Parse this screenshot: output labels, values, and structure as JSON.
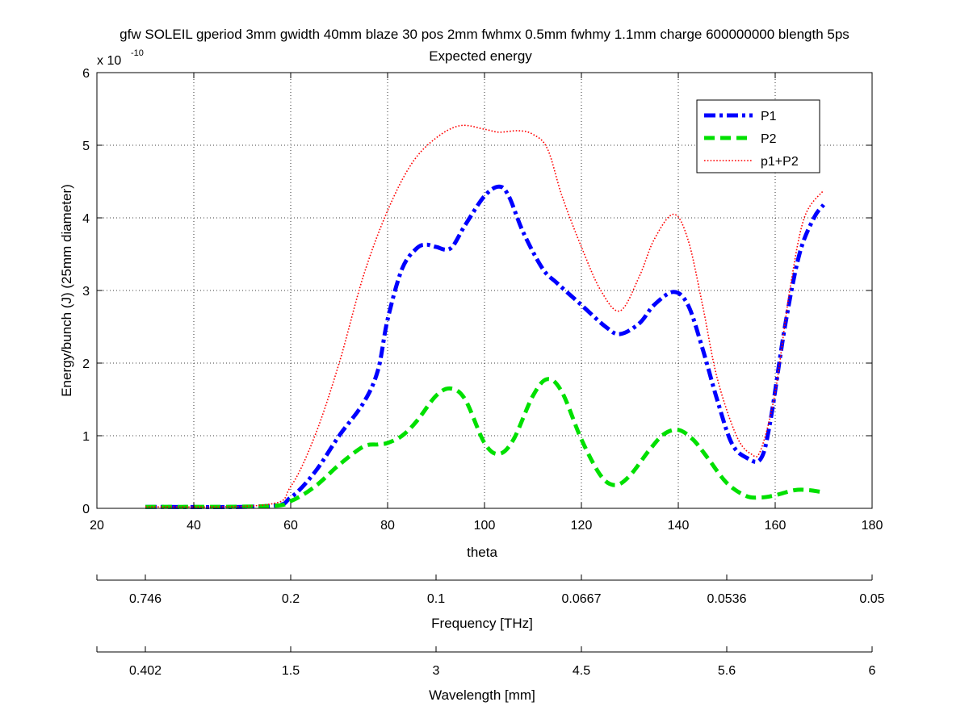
{
  "chart_data": {
    "type": "line",
    "title": "gfw SOLEIL gperiod 3mm gwidth 40mm blaze 30 pos 2mm fwhmx 0.5mm fwhmy 1.1mm charge 600000000 blength 5ps",
    "subtitle": "Expected energy",
    "xlabel": "theta",
    "ylabel": "Energy/bunch (J) (25mm diameter)",
    "y_exponent_base": "x 10",
    "y_exponent_power": "-10",
    "xlim": [
      20,
      180
    ],
    "ylim": [
      0,
      6
    ],
    "x_ticks": [
      "20",
      "40",
      "60",
      "80",
      "100",
      "120",
      "140",
      "160",
      "180"
    ],
    "y_ticks": [
      "0",
      "1",
      "2",
      "3",
      "4",
      "5",
      "6"
    ],
    "grid": true,
    "legend_position": "top-right",
    "series": [
      {
        "name": "P1",
        "color": "#0000ff",
        "style": "dashdot",
        "x": [
          30,
          55,
          60,
          65,
          70,
          75,
          78,
          80,
          83,
          86,
          88,
          90,
          93,
          96,
          100,
          103,
          105,
          108,
          112,
          115,
          120,
          125,
          128,
          132,
          135,
          139,
          142,
          145,
          148,
          151,
          154,
          157,
          159,
          162,
          165,
          168,
          170
        ],
        "values": [
          0.02,
          0.03,
          0.15,
          0.5,
          1.0,
          1.45,
          1.9,
          2.6,
          3.3,
          3.58,
          3.63,
          3.6,
          3.58,
          3.9,
          4.3,
          4.43,
          4.3,
          3.8,
          3.3,
          3.1,
          2.8,
          2.5,
          2.4,
          2.55,
          2.8,
          2.98,
          2.8,
          2.2,
          1.5,
          0.9,
          0.7,
          0.68,
          1.2,
          2.5,
          3.5,
          4.0,
          4.18
        ]
      },
      {
        "name": "P2",
        "color": "#00e000",
        "style": "dashed",
        "x": [
          30,
          55,
          60,
          65,
          70,
          75,
          78,
          80,
          83,
          86,
          90,
          93,
          96,
          100,
          103,
          106,
          110,
          113,
          116,
          120,
          124,
          127,
          130,
          134,
          137,
          140,
          143,
          146,
          150,
          154,
          157,
          160,
          164,
          167,
          170
        ],
        "values": [
          0.02,
          0.03,
          0.1,
          0.3,
          0.6,
          0.85,
          0.88,
          0.9,
          1.0,
          1.2,
          1.55,
          1.65,
          1.5,
          0.9,
          0.75,
          0.95,
          1.55,
          1.78,
          1.6,
          0.95,
          0.45,
          0.32,
          0.45,
          0.8,
          1.02,
          1.08,
          0.95,
          0.7,
          0.35,
          0.17,
          0.15,
          0.18,
          0.25,
          0.25,
          0.22
        ]
      },
      {
        "name": "p1+P2",
        "color": "#ff0000",
        "style": "dotted",
        "x": [
          30,
          55,
          60,
          65,
          70,
          75,
          80,
          85,
          90,
          95,
          100,
          103,
          107,
          110,
          113,
          116,
          120,
          124,
          128,
          132,
          135,
          139,
          142,
          145,
          148,
          152,
          155,
          157,
          160,
          163,
          166,
          170
        ],
        "values": [
          0.02,
          0.05,
          0.3,
          1.0,
          2.0,
          3.2,
          4.1,
          4.75,
          5.1,
          5.27,
          5.22,
          5.18,
          5.2,
          5.15,
          4.95,
          4.3,
          3.6,
          3.0,
          2.72,
          3.2,
          3.7,
          4.05,
          3.7,
          2.8,
          1.8,
          1.0,
          0.75,
          0.8,
          1.6,
          3.0,
          4.0,
          4.38
        ]
      }
    ],
    "secondary_axes": [
      {
        "label": "Frequency [THz]",
        "ticks": [
          "0.746",
          "0.2",
          "0.1",
          "0.0667",
          "0.0536",
          "0.05"
        ]
      },
      {
        "label": "Wavelength [mm]",
        "ticks": [
          "0.402",
          "1.5",
          "3",
          "4.5",
          "5.6",
          "6"
        ]
      }
    ]
  }
}
